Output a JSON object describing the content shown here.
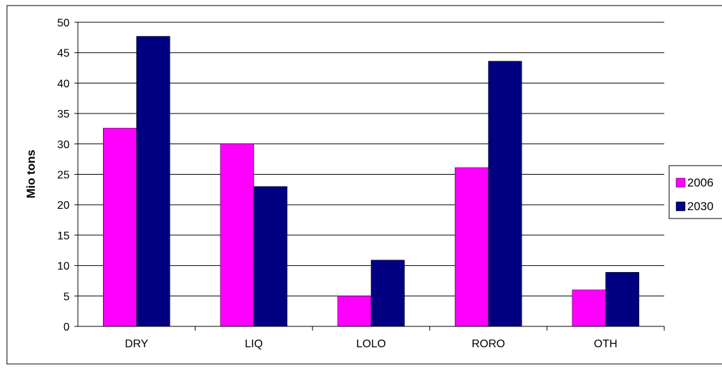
{
  "chart_data": {
    "type": "bar",
    "categories": [
      "DRY",
      "LIQ",
      "LOLO",
      "RORO",
      "OTH"
    ],
    "series": [
      {
        "name": "2006",
        "color": "#FF00FF",
        "values": [
          32.6,
          30.0,
          5.0,
          26.1,
          6.0
        ]
      },
      {
        "name": "2030",
        "color": "#000080",
        "values": [
          47.7,
          23.0,
          10.9,
          43.6,
          8.9
        ]
      }
    ],
    "title": "",
    "xlabel": "",
    "ylabel": "Mio tons",
    "ylim": [
      0,
      50
    ],
    "yticks": [
      "0",
      "5",
      "10",
      "15",
      "20",
      "25",
      "30",
      "35",
      "40",
      "45",
      "50"
    ],
    "grid": true,
    "legend_position": "right",
    "plot_background": "#ffffff",
    "gridline_color": "#000000"
  }
}
